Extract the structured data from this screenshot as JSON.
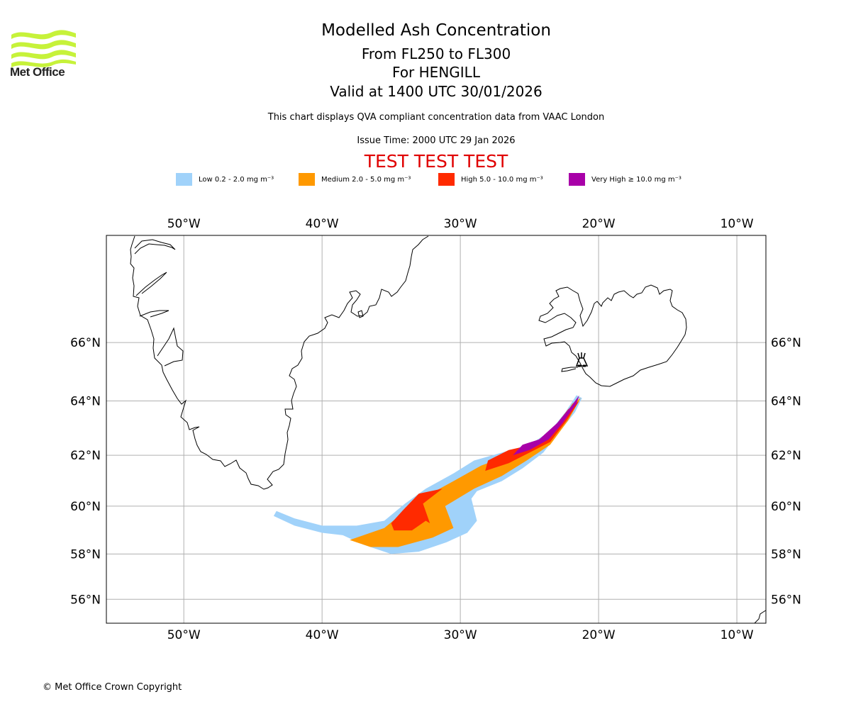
{
  "header": {
    "logo_text": "Met Office",
    "title": "Modelled Ash Concentration",
    "level_range": "From FL250 to FL300",
    "volcano": "For HENGILL",
    "valid_time": "Valid at 1400 UTC 30/01/2026",
    "subtitle": "This chart displays QVA compliant concentration data from VAAC London",
    "issue_time": "Issue Time: 2000 UTC 29 Jan 2026",
    "test_banner": "TEST TEST TEST"
  },
  "legend": [
    {
      "label": "Low 0.2 - 2.0 mg m⁻³",
      "color": "#a0d2fa"
    },
    {
      "label": "Medium 2.0 - 5.0 mg m⁻³",
      "color": "#ff9900"
    },
    {
      "label": "High 5.0 - 10.0 mg m⁻³",
      "color": "#ff2a00"
    },
    {
      "label": "Very High  ≥  10.0 mg m⁻³",
      "color": "#a800a8"
    }
  ],
  "chart_data": {
    "type": "map",
    "title": "Modelled Ash Concentration",
    "extent": {
      "lon": [
        -55.6,
        -7.9
      ],
      "lat": [
        54.9,
        69.3
      ]
    },
    "grid": true,
    "lon_ticks": [
      -50,
      -40,
      -30,
      -20,
      -10
    ],
    "lon_tick_labels": [
      "50°W",
      "40°W",
      "30°W",
      "20°W",
      "10°W"
    ],
    "lat_ticks": [
      66,
      64,
      62,
      60,
      58,
      56
    ],
    "lat_tick_labels": [
      "66°N",
      "64°N",
      "62°N",
      "60°N",
      "58°N",
      "56°N"
    ],
    "volcano": {
      "name": "HENGILL",
      "lon": -21.3,
      "lat": 64.1,
      "marker": "volcano-icon"
    },
    "ash_contours": [
      {
        "level": "Low",
        "color": "#a0d2fa",
        "polygon": [
          [
            -43.5,
            59.6
          ],
          [
            -42,
            59.2
          ],
          [
            -40,
            58.9
          ],
          [
            -38.5,
            58.8
          ],
          [
            -37,
            58.4
          ],
          [
            -35,
            58.0
          ],
          [
            -33,
            58.1
          ],
          [
            -31,
            58.5
          ],
          [
            -29.5,
            58.9
          ],
          [
            -28.8,
            59.4
          ],
          [
            -29.2,
            60.3
          ],
          [
            -28.8,
            60.6
          ],
          [
            -27,
            61.0
          ],
          [
            -25.5,
            61.5
          ],
          [
            -24,
            62.1
          ],
          [
            -22.8,
            62.9
          ],
          [
            -21.7,
            63.6
          ],
          [
            -21.2,
            64.1
          ],
          [
            -21.6,
            64.2
          ],
          [
            -22.4,
            63.6
          ],
          [
            -23.5,
            62.9
          ],
          [
            -25,
            62.4
          ],
          [
            -27,
            62.1
          ],
          [
            -29,
            61.8
          ],
          [
            -30.5,
            61.3
          ],
          [
            -32.5,
            60.7
          ],
          [
            -34,
            60.1
          ],
          [
            -35.5,
            59.4
          ],
          [
            -37.5,
            59.2
          ],
          [
            -40,
            59.2
          ],
          [
            -42,
            59.5
          ],
          [
            -43.3,
            59.8
          ]
        ]
      },
      {
        "level": "Medium",
        "color": "#ff9900",
        "polygon": [
          [
            -38,
            58.6
          ],
          [
            -36.5,
            58.3
          ],
          [
            -34.5,
            58.3
          ],
          [
            -32,
            58.7
          ],
          [
            -30.5,
            59.1
          ],
          [
            -31.1,
            60.0
          ],
          [
            -29,
            60.7
          ],
          [
            -27,
            61.2
          ],
          [
            -25.2,
            61.8
          ],
          [
            -23.5,
            62.4
          ],
          [
            -22.2,
            63.3
          ],
          [
            -21.3,
            64.1
          ],
          [
            -21.9,
            63.9
          ],
          [
            -22.9,
            63.1
          ],
          [
            -24.3,
            62.4
          ],
          [
            -26.5,
            62.0
          ],
          [
            -28.5,
            61.6
          ],
          [
            -30.5,
            61.0
          ],
          [
            -32.5,
            60.4
          ],
          [
            -34,
            59.8
          ],
          [
            -35.5,
            59.1
          ],
          [
            -37,
            58.8
          ]
        ]
      },
      {
        "level": "High",
        "color": "#ff2a00",
        "polygon": [
          [
            -34.8,
            59.0
          ],
          [
            -33.5,
            59.0
          ],
          [
            -32.5,
            59.4
          ],
          [
            -32.2,
            59.3
          ],
          [
            -32.7,
            60.1
          ],
          [
            -31.3,
            60.7
          ],
          [
            -33,
            60.5
          ],
          [
            -34.2,
            59.8
          ],
          [
            -35,
            59.3
          ]
        ]
      },
      {
        "level": "High",
        "color": "#ff2a00",
        "polygon": [
          [
            -28.2,
            61.4
          ],
          [
            -26.5,
            61.7
          ],
          [
            -25,
            62.1
          ],
          [
            -23.5,
            62.5
          ],
          [
            -22.3,
            63.3
          ],
          [
            -21.4,
            64.0
          ],
          [
            -22.2,
            63.7
          ],
          [
            -23.3,
            63.0
          ],
          [
            -24.8,
            62.4
          ],
          [
            -26.5,
            62.2
          ],
          [
            -28,
            61.8
          ]
        ]
      },
      {
        "level": "Very High",
        "color": "#a800a8",
        "polygon": [
          [
            -26.2,
            62.0
          ],
          [
            -25,
            62.2
          ],
          [
            -23.6,
            62.6
          ],
          [
            -22.6,
            63.2
          ],
          [
            -21.6,
            63.9
          ],
          [
            -21.4,
            64.2
          ],
          [
            -22,
            63.8
          ],
          [
            -23,
            63.2
          ],
          [
            -24.3,
            62.6
          ],
          [
            -25.5,
            62.4
          ]
        ]
      }
    ]
  },
  "footer": {
    "copyright": "© Met Office Crown Copyright"
  }
}
